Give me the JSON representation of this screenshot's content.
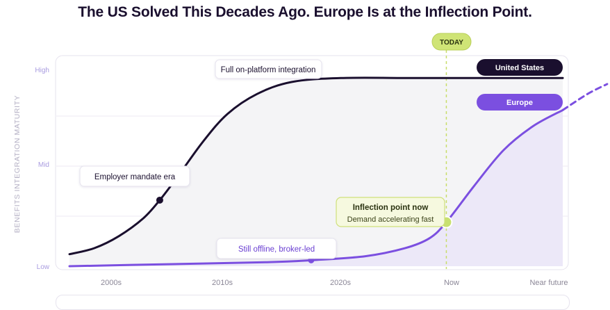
{
  "page": {
    "title": "The US Solved This Decades Ago. Europe Is at the Inflection Point."
  },
  "chart_data": {
    "type": "line",
    "title": "The US Solved This Decades Ago. Europe Is at the Inflection Point.",
    "ylabel": "BENEFITS INTEGRATION MATURITY",
    "xlabel": "",
    "yticks": [
      "High",
      "Mid",
      "Low"
    ],
    "xticks": [
      "2000s",
      "2010s",
      "2020s",
      "Now",
      "Near future"
    ],
    "xlim": [
      0,
      100
    ],
    "ylim": [
      0,
      100
    ],
    "today_label": "TODAY",
    "today_x": 76.4,
    "colors": {
      "us": "#1a0f2e",
      "europe": "#7b4fe0",
      "today": "#c8e070",
      "grid": "#eceaf3",
      "axis_text": "#a99ce0"
    },
    "series": [
      {
        "name": "United States",
        "color": "#1a0f2e",
        "points": [
          [
            0,
            6
          ],
          [
            5,
            9
          ],
          [
            10,
            15
          ],
          [
            15,
            24
          ],
          [
            18.3,
            33
          ],
          [
            22,
            45
          ],
          [
            27,
            62
          ],
          [
            32,
            76
          ],
          [
            38,
            86
          ],
          [
            45,
            92
          ],
          [
            55,
            94
          ],
          [
            70,
            94
          ],
          [
            85,
            94
          ],
          [
            100,
            94
          ]
        ],
        "markers": [
          [
            18.3,
            33
          ]
        ]
      },
      {
        "name": "Europe",
        "color": "#7b4fe0",
        "points": [
          [
            0,
            0
          ],
          [
            20,
            1
          ],
          [
            40,
            2
          ],
          [
            49,
            3
          ],
          [
            60,
            5
          ],
          [
            68,
            9
          ],
          [
            73,
            14
          ],
          [
            76.4,
            22
          ],
          [
            82,
            40
          ],
          [
            88,
            58
          ],
          [
            94,
            70
          ],
          [
            100,
            78
          ]
        ],
        "projection": [
          [
            100,
            78
          ],
          [
            105,
            86
          ],
          [
            109,
            91
          ]
        ],
        "markers": [
          [
            49,
            3
          ],
          [
            76.4,
            22
          ]
        ]
      }
    ],
    "annotations": [
      {
        "id": "full-integration",
        "text": "Full on-platform integration"
      },
      {
        "id": "mandate",
        "text": "Employer mandate era"
      },
      {
        "id": "offline",
        "text": "Still offline, broker-led"
      },
      {
        "id": "inflection",
        "text": "Inflection point now",
        "subtext": "Demand accelerating fast"
      }
    ],
    "legend": [
      {
        "text": "United States",
        "color": "#1a0f2e"
      },
      {
        "text": "Europe",
        "color": "#7b4fe0"
      }
    ]
  }
}
